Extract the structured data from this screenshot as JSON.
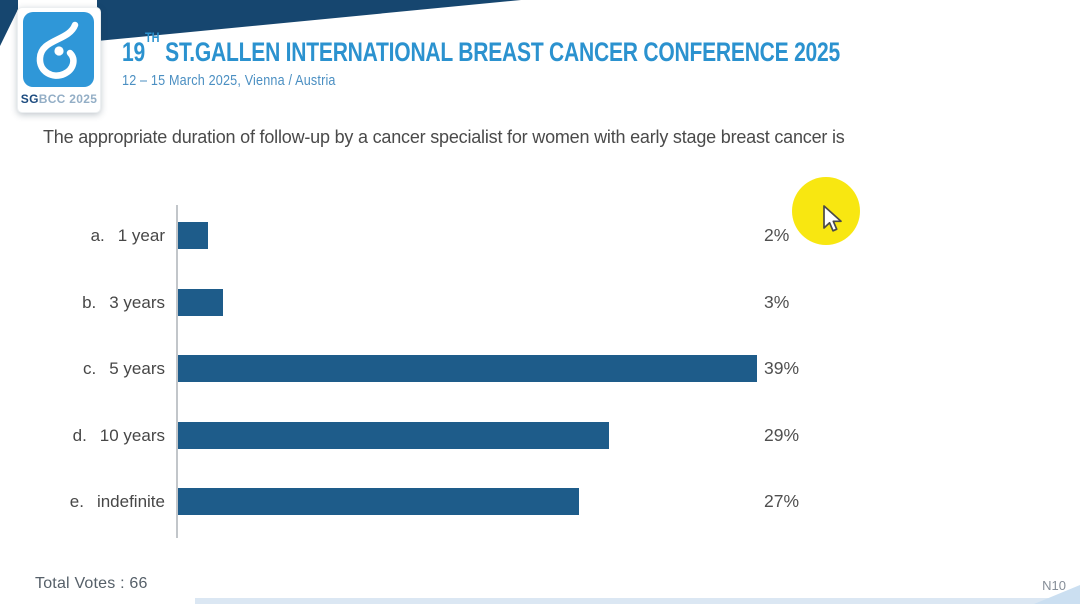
{
  "header": {
    "logo": {
      "icon": "sgbcc-drop-logo",
      "text_bold": "SG",
      "text_light": "BCC 2025",
      "square_color": "#2F97D8"
    },
    "title_num": "19",
    "title_sup": "TH",
    "title_rest": " ST.GALLEN INTERNATIONAL BREAST CANCER CONFERENCE 2025",
    "subtitle": "12 – 15 March 2025, Vienna / Austria",
    "title_color": "#2B92CF",
    "banner_color": "#16466F"
  },
  "question": "The appropriate duration of follow-up by a cancer specialist for women with early stage breast cancer is",
  "chart_data": {
    "type": "bar",
    "orientation": "horizontal",
    "title": "",
    "xlabel": "",
    "ylabel": "",
    "option_keys": [
      "a.",
      "b.",
      "c.",
      "d.",
      "e."
    ],
    "categories": [
      "1 year",
      "3 years",
      "5 years",
      "10 years",
      "indefinite"
    ],
    "values": [
      2,
      3,
      39,
      29,
      27
    ],
    "value_labels": [
      "2%",
      "3%",
      "39%",
      "29%",
      "27%"
    ],
    "xlim": [
      0,
      40
    ],
    "grid": false,
    "legend": false,
    "bar_color": "#1E5C8A",
    "axis_color": "#C2C6CA"
  },
  "overlay": {
    "highlight": "yellow-circle",
    "highlight_color": "#F8E711",
    "cursor": "arrow-cursor"
  },
  "footer": {
    "total_votes": "Total Votes : 66",
    "slide_code": "N10"
  }
}
